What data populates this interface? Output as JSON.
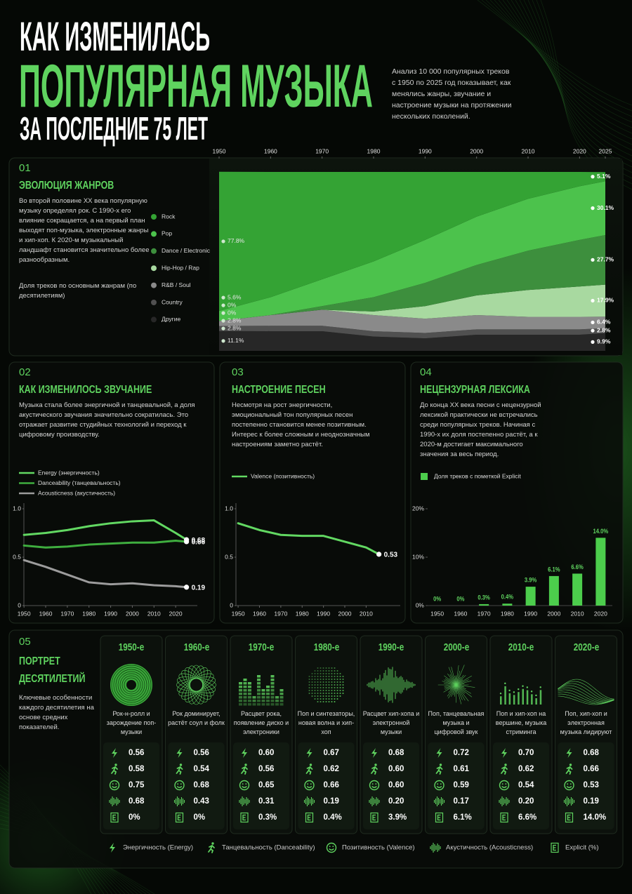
{
  "header": {
    "title_line1": "КАК ИЗМЕНИЛАСЬ",
    "title_line2": "ПОПУЛЯРНАЯ МУЗЫКА",
    "title_line3": "ЗА ПОСЛЕДНИЕ 75 ЛЕТ",
    "intro": "Анализ 10 000 популярных треков с 1950 по 2025 год показывает, как менялись жанры, звучание и настроение музыки на протяжении нескольких поколений."
  },
  "sections": [
    {
      "number": "01",
      "title": "ЭВОЛЮЦИЯ ЖАНРОВ",
      "text": "Во второй половине XX века популярную музыку определял рок. С 1990-х его влияние сокращается, а на первый план выходят поп-музыка, электронные жанры и хип-хоп. К 2020-м музыкальный ландшафт становится значительно более разнообразным.",
      "note": "Доля треков по основным жанрам (по десятилетиям)"
    },
    {
      "number": "02",
      "title": "КАК ИЗМЕНИЛОСЬ ЗВУЧАНИЕ",
      "text": "Музыка стала более энергичной и танцевальной, а доля акустического звучания значительно сократилась. Это отражает развитие студийных технологий и переход к цифровому производству."
    },
    {
      "number": "03",
      "title": "НАСТРОЕНИЕ ПЕСЕН",
      "text": "Несмотря на рост энергичности, эмоциональный тон популярных песен постепенно становится менее позитивным. Интерес к более сложным и неоднозначным настроениям заметно растёт."
    },
    {
      "number": "04",
      "title": "НЕЦЕНЗУРНАЯ ЛЕКСИКА",
      "text": "До конца XX века песни с нецензурной лексикой практически не встречались среди популярных треков. Начиная с 1990-х их доля постепенно растёт, а к 2020-м достигает максимального значения за весь период."
    },
    {
      "number": "05",
      "title": "ПОРТРЕТ ДЕСЯТИЛЕТИЙ",
      "text": "Ключевые особенности каждого десятилетия на основе средних показателей."
    }
  ],
  "chart_data": [
    {
      "type": "area",
      "stacked": true,
      "x": [
        1950,
        1960,
        1970,
        1980,
        1990,
        2000,
        2010,
        2020,
        2025
      ],
      "xlim": [
        1950,
        2025
      ],
      "xticks": [
        1950,
        1960,
        1970,
        1980,
        1990,
        2000,
        2010,
        2020,
        2025
      ],
      "ylim": [
        0,
        100
      ],
      "series": [
        {
          "name": "Rock",
          "color": "#34a334",
          "values": [
            77.8,
            70,
            60,
            50,
            38,
            25,
            15,
            8,
            5.1
          ],
          "value_labels": [
            "77.8%",
            null,
            null,
            null,
            null,
            null,
            null,
            null,
            "5.1%"
          ]
        },
        {
          "name": "Pop",
          "color": "#4cc24c",
          "values": [
            5.6,
            10,
            15,
            20,
            24,
            27,
            29,
            30,
            30.1
          ],
          "value_labels": [
            "5.6%",
            null,
            null,
            null,
            null,
            null,
            null,
            null,
            "30.1%"
          ]
        },
        {
          "name": "Dance / Electronic",
          "color": "#3d8f3d",
          "values": [
            0,
            0,
            2,
            8,
            13,
            17,
            22,
            26,
            27.7
          ],
          "value_labels": [
            "0%",
            null,
            null,
            null,
            null,
            null,
            null,
            null,
            "27.7%"
          ]
        },
        {
          "name": "Hip-Hop / Rap",
          "color": "#a8d9a0",
          "values": [
            0,
            0,
            0,
            2,
            7,
            11,
            15,
            17,
            17.9
          ],
          "value_labels": [
            "0%",
            null,
            null,
            null,
            null,
            null,
            null,
            null,
            "17.9%"
          ]
        },
        {
          "name": "R&B / Soul",
          "color": "#8a8a8a",
          "values": [
            2.8,
            6,
            9,
            9,
            8,
            8,
            7,
            7,
            6.4
          ],
          "value_labels": [
            "2.8%",
            null,
            null,
            null,
            null,
            null,
            null,
            null,
            "6.4%"
          ]
        },
        {
          "name": "Country",
          "color": "#505050",
          "values": [
            2.8,
            3,
            3,
            3,
            3,
            3,
            3,
            3,
            2.8
          ],
          "value_labels": [
            "2.8%",
            null,
            null,
            null,
            null,
            null,
            null,
            null,
            "2.8%"
          ]
        },
        {
          "name": "Другие",
          "color": "#272727",
          "values": [
            11.1,
            11,
            11,
            8,
            7,
            9,
            9,
            9,
            9.9
          ],
          "value_labels": [
            "11.1%",
            null,
            null,
            null,
            null,
            null,
            null,
            null,
            "9.9%"
          ]
        }
      ]
    },
    {
      "type": "line",
      "x": [
        1950,
        1960,
        1970,
        1980,
        1990,
        2000,
        2010,
        2020,
        2025
      ],
      "xlim": [
        1948,
        2030
      ],
      "xticks": [
        1950,
        1960,
        1970,
        1980,
        1990,
        2000,
        2010,
        2020
      ],
      "ylim": [
        0,
        1
      ],
      "yticks": [
        0,
        0.5,
        {
          "value": 1,
          "label": "1.0"
        }
      ],
      "series": [
        {
          "name": "Energy (энергичность)",
          "color": "#62d862",
          "values": [
            0.73,
            0.75,
            0.78,
            0.82,
            0.85,
            0.87,
            0.88,
            0.75,
            0.68
          ]
        },
        {
          "name": "Danceability (танцевальность)",
          "color": "#3fae3f",
          "values": [
            0.62,
            0.6,
            0.61,
            0.63,
            0.64,
            0.65,
            0.65,
            0.67,
            0.66
          ]
        },
        {
          "name": "Acousticness (акустичность)",
          "color": "#9c9c9c",
          "values": [
            0.47,
            0.4,
            0.32,
            0.24,
            0.22,
            0.23,
            0.21,
            0.2,
            0.19
          ]
        }
      ]
    },
    {
      "type": "line",
      "x": [
        1950,
        1960,
        1970,
        1980,
        1990,
        2000,
        2010,
        2016
      ],
      "xlim": [
        1947,
        2026
      ],
      "xticks": [
        1950,
        1960,
        1970,
        1980,
        1990,
        2000,
        2010
      ],
      "ylim": [
        0,
        1
      ],
      "yticks": [
        0,
        0.5,
        {
          "value": 1,
          "label": "1.0"
        }
      ],
      "series": [
        {
          "name": "Valence (позитивность)",
          "color": "#62d862",
          "values": [
            0.85,
            0.78,
            0.73,
            0.72,
            0.72,
            0.66,
            0.6,
            0.53
          ]
        }
      ]
    },
    {
      "type": "bar",
      "categories": [
        "1950",
        "1960",
        "1970",
        "1980",
        "1990",
        "2000",
        "2010",
        "2020"
      ],
      "ylim": [
        0,
        20
      ],
      "yticks": [
        {
          "value": 0,
          "label": "0%"
        },
        {
          "value": 10,
          "label": "10%"
        },
        {
          "value": 20,
          "label": "20%"
        }
      ],
      "series": [
        {
          "name": "Доля треков с пометкой Explicit",
          "color": "#4ccd4c",
          "values": [
            0,
            0,
            0.3,
            0.4,
            3.9,
            6.1,
            6.6,
            14.0
          ],
          "value_labels": [
            "0%",
            "0%",
            "0.3%",
            "0.4%",
            "3.9%",
            "6.1%",
            "6.6%",
            "14.0%"
          ]
        }
      ]
    }
  ],
  "decades": [
    {
      "title": "1950-е",
      "description": "Рок-н-ролл и зарождение поп-музыки",
      "energy": "0.56",
      "danceability": "0.58",
      "valence": "0.75",
      "acousticness": "0.68",
      "explicit": "0%"
    },
    {
      "title": "1960-е",
      "description": "Рок доминирует, растёт соул и фолк",
      "energy": "0.56",
      "danceability": "0.54",
      "valence": "0.68",
      "acousticness": "0.43",
      "explicit": "0%"
    },
    {
      "title": "1970-е",
      "description": "Расцвет рока, появление диско и электроники",
      "energy": "0.60",
      "danceability": "0.56",
      "valence": "0.65",
      "acousticness": "0.31",
      "explicit": "0.3%"
    },
    {
      "title": "1980-е",
      "description": "Поп и синтезаторы, новая волна и хип-хоп",
      "energy": "0.67",
      "danceability": "0.62",
      "valence": "0.66",
      "acousticness": "0.19",
      "explicit": "0.4%"
    },
    {
      "title": "1990-е",
      "description": "Расцвет хип-хопа и электронной музыки",
      "energy": "0.68",
      "danceability": "0.60",
      "valence": "0.60",
      "acousticness": "0.20",
      "explicit": "3.9%"
    },
    {
      "title": "2000-е",
      "description": "Поп, танцевальная музыка и цифровой звук",
      "energy": "0.72",
      "danceability": "0.61",
      "valence": "0.59",
      "acousticness": "0.17",
      "explicit": "6.1%"
    },
    {
      "title": "2010-е",
      "description": "Поп и хип-хоп на вершине, музыка стриминга",
      "energy": "0.70",
      "danceability": "0.62",
      "valence": "0.54",
      "acousticness": "0.20",
      "explicit": "6.6%"
    },
    {
      "title": "2020-е",
      "description": "Поп, хип-хоп и электронная музыка лидируют",
      "energy": "0.68",
      "danceability": "0.66",
      "valence": "0.53",
      "acousticness": "0.19",
      "explicit": "14.0%"
    }
  ],
  "metrics_legend": {
    "energy": "Энергичность (Energy)",
    "danceability": "Танцевальность (Danceability)",
    "valence": "Позитивность (Valence)",
    "acousticness": "Акустичность (Acousticness)",
    "explicit": "Explicit (%)"
  }
}
